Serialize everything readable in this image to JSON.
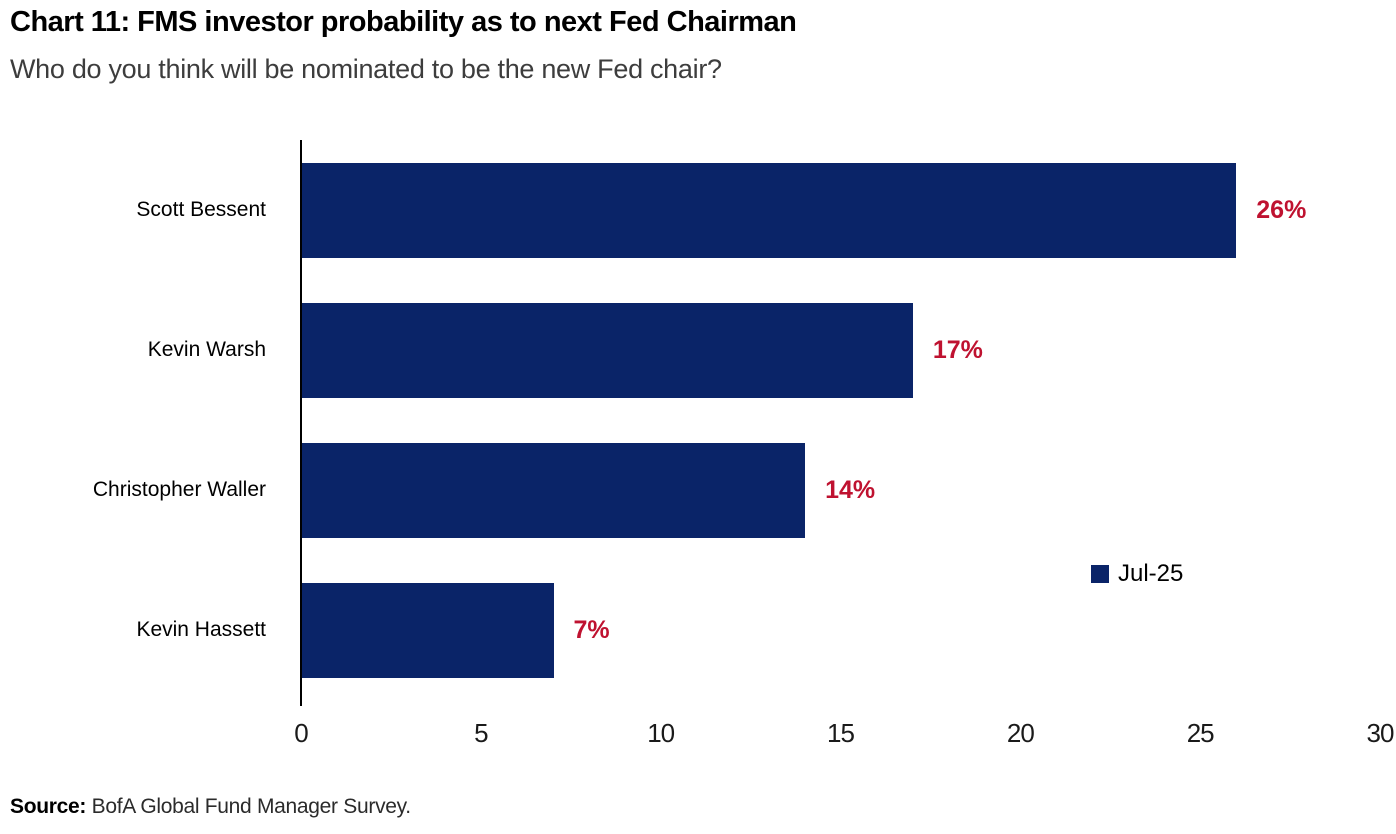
{
  "chart_data": {
    "type": "bar",
    "orientation": "horizontal",
    "title": "Chart 11: FMS investor probability as to next Fed Chairman",
    "subtitle": "Who do you think will be nominated to be the new Fed chair?",
    "categories": [
      "Scott Bessent",
      "Kevin Warsh",
      "Christopher Waller",
      "Kevin Hassett"
    ],
    "series": [
      {
        "name": "Jul-25",
        "values": [
          26,
          17,
          14,
          7
        ]
      }
    ],
    "value_labels": [
      "26%",
      "17%",
      "14%",
      "7%"
    ],
    "xlim": [
      0,
      30
    ],
    "x_ticks": [
      0,
      5,
      10,
      15,
      20,
      25,
      30
    ],
    "grid": false,
    "legend": {
      "label": "Jul-25",
      "position": "right-middle"
    },
    "colors": {
      "bar": "#0a2468",
      "value_label": "#bf1230",
      "axis_line": "#000000",
      "subtitle_text": "#3d3d3d"
    }
  },
  "footer": {
    "source_label": "Source:",
    "source_text": " BofA Global Fund Manager Survey."
  }
}
